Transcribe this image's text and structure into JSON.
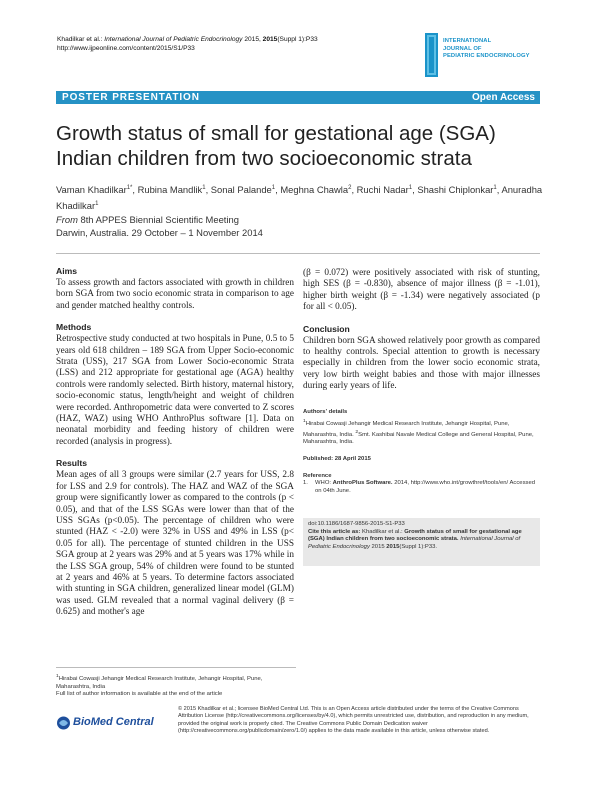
{
  "header": {
    "authors_short": "Khadilkar et al.",
    "journal": "International Journal of Pediatric Endocrinology",
    "year": "2015",
    "volume": "2015",
    "issue": "(Suppl 1):P33",
    "url": "http://www.ijpeonline.com/content/2015/S1/P33"
  },
  "logo": {
    "line1": "INTERNATIONAL",
    "line2": "JOURNAL OF",
    "line3": "PEDIATRIC ENDOCRINOLOGY",
    "color": "#1a93c9"
  },
  "banner": {
    "section": "POSTER PRESENTATION",
    "access": "Open Access",
    "color": "#2592c5"
  },
  "title": "Growth status of small for gestational age (SGA) Indian children from two socioeconomic strata",
  "authors": [
    {
      "name": "Vaman Khadilkar",
      "sup": "1*"
    },
    {
      "name": "Rubina Mandlik",
      "sup": "1"
    },
    {
      "name": "Sonal Palande",
      "sup": "1"
    },
    {
      "name": "Meghna Chawla",
      "sup": "2"
    },
    {
      "name": "Ruchi Nadar",
      "sup": "1"
    },
    {
      "name": "Shashi Chiplonkar",
      "sup": "1"
    },
    {
      "name": "Anuradha Khadilkar",
      "sup": "1"
    }
  ],
  "meeting": {
    "from": "From",
    "name": "8th APPES Biennial Scientific Meeting",
    "place": "Darwin, Australia. 29 October – 1 November 2014"
  },
  "aims": {
    "heading": "Aims",
    "text": "To assess growth and factors associated with growth in children born SGA from two socio economic strata in comparison to age and gender matched healthy controls."
  },
  "methods": {
    "heading": "Methods",
    "text": "Retrospective study conducted at two hospitals in Pune, 0.5 to 5 years old 618 children – 189 SGA from Upper Socio-economic Strata (USS), 217 SGA from Lower Socio-economic Strata (LSS) and 212 appropriate for gestational age (AGA) healthy controls were randomly selected. Birth history, maternal history, socio-economic status, length/height and weight of children were recorded. Anthropometric data were converted to Z scores (HAZ, WAZ) using WHO AnthroPlus software [1]. Data on neonatal morbidity and feeding history of children were recorded (analysis in progress)."
  },
  "results": {
    "heading": "Results",
    "text": "Mean ages of all 3 groups were similar (2.7 years for USS, 2.8 for LSS and 2.9 for controls). The HAZ and WAZ of the SGA group were significantly lower as compared to the controls (p < 0.05), and that of the LSS SGAs were lower than that of the USS SGAs (p<0.05). The percentage of children who were stunted (HAZ < -2.0) were 32% in USS and 49% in LSS (p< 0.05 for all). The percentage of stunted children in the USS SGA group at 2 years was 29% and at 5 years was 17% while in the LSS SGA group, 54% of children were found to be stunted at 2 years and 46% at 5 years. To determine factors associated with stunting in SGA children, generalized linear model (GLM) was used. GLM revealed that a normal vaginal delivery (β = 0.625) and mother's age",
    "text_cont": "(β = 0.072) were positively associated with risk of stunting, high SES (β = -0.830), absence of major illness (β = -1.01), higher birth weight (β = -1.34) were negatively associated (p for all < 0.05)."
  },
  "conclusion": {
    "heading": "Conclusion",
    "text": "Children born SGA showed relatively poor growth as compared to healthy controls. Special attention to growth is necessary especially in children from the lower socio economic strata, very low birth weight babies and those with major illnesses during early years of life."
  },
  "details": {
    "heading": "Authors' details",
    "sup1": "1",
    "aff1": "Hirabai Cowasji Jehangir Medical Research Institute, Jehangir Hospital, Pune, Maharashtra, India.",
    "sup2": "2",
    "aff2": "Smt. Kashibai Navale Medical College and General Hospital, Pune, Maharashtra, India."
  },
  "published": "Published: 28 April 2015",
  "references": {
    "heading": "Reference",
    "items": [
      {
        "num": "1.",
        "pre": "WHO: ",
        "bold": "AnthroPlus Software.",
        "post": " 2014, http://www.who.int/growthref/tools/en/ Accessed on 04th June."
      }
    ]
  },
  "citebox": {
    "doi": "doi:10.1186/1687-9856-2015-S1-P33",
    "cite_label": "Cite this article as:",
    "cite_authors": " Khadilkar et al.:",
    "cite_title": " Growth status of small for gestational age (SGA) Indian children from two socioeconomic strata.",
    "cite_journal": "International Journal of Pediatric Endocrinology",
    "cite_end": " 2015 ",
    "cite_vol": "2015",
    "cite_issue": "(Suppl 1):P33."
  },
  "footnote": {
    "sup": "1",
    "affil": "Hirabai Cowasji Jehangir Medical Research Institute, Jehangir Hospital, Pune, Maharashtra, India",
    "full_list": "Full list of author information is available at the end of the article"
  },
  "license": {
    "text": "© 2015 Khadilkar et al.; licensee BioMed Central Ltd. This is an Open Access article distributed under the terms of the Creative Commons Attribution License (http://creativecommons.org/licenses/by/4.0), which permits unrestricted use, distribution, and reproduction in any medium, provided the original work is properly cited. The Creative Commons Public Domain Dedication waiver (http://creativecommons.org/publicdomain/zero/1.0/) applies to the data made available in this article, unless otherwise stated."
  },
  "publisher": {
    "name": "BioMed Central",
    "color": "#1e4f9c"
  }
}
